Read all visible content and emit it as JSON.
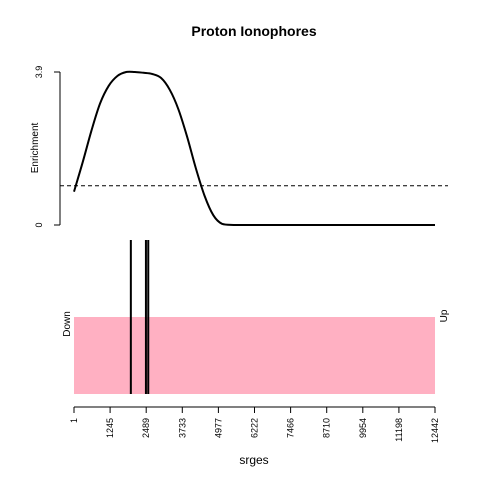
{
  "chart_data": {
    "type": "line",
    "title": "Proton Ionophores",
    "xlabel": "srges",
    "ylabel": "Enrichment",
    "x_range": [
      1,
      12442
    ],
    "y_range": [
      0,
      3.9
    ],
    "y_ticks": [
      "0",
      "3.9"
    ],
    "x_ticks": [
      {
        "value": 1,
        "label": "1"
      },
      {
        "value": 1245,
        "label": "1245"
      },
      {
        "value": 2489,
        "label": "2489"
      },
      {
        "value": 3733,
        "label": "3733"
      },
      {
        "value": 4977,
        "label": "4977"
      },
      {
        "value": 6222,
        "label": "6222"
      },
      {
        "value": 7466,
        "label": "7466"
      },
      {
        "value": 8710,
        "label": "8710"
      },
      {
        "value": 9954,
        "label": "9954"
      },
      {
        "value": 11198,
        "label": "11198"
      },
      {
        "value": 12442,
        "label": "12442"
      }
    ],
    "enrichment_curve": {
      "x": [
        1,
        300,
        600,
        900,
        1200,
        1500,
        1800,
        2100,
        2400,
        2700,
        3000,
        3300,
        3600,
        3900,
        4200,
        4500,
        4800,
        5100,
        5500,
        6000,
        7000,
        8000,
        9000,
        10000,
        11000,
        12442
      ],
      "y": [
        0.85,
        1.6,
        2.4,
        3.1,
        3.55,
        3.8,
        3.9,
        3.9,
        3.88,
        3.85,
        3.75,
        3.45,
        2.95,
        2.25,
        1.45,
        0.75,
        0.25,
        0.03,
        0.0,
        0.0,
        0.0,
        0.0,
        0.0,
        0.0,
        0.0,
        0.0
      ]
    },
    "threshold": 1.0,
    "gene_set_positions": [
      1960,
      2480,
      2560
    ],
    "barcode_colors": {
      "background": "#FFB0C2",
      "line": "#000000"
    },
    "down_label": "Down",
    "up_label": "Up"
  }
}
